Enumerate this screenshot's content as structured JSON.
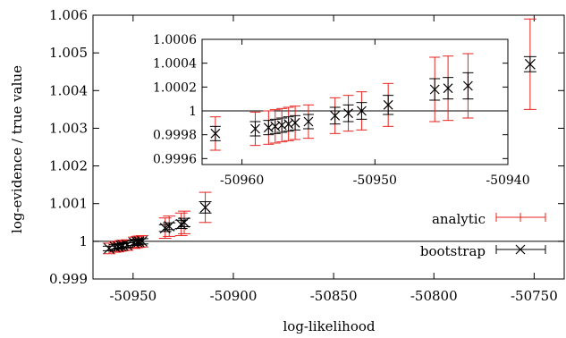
{
  "chart_data": [
    {
      "type": "scatter",
      "title": "",
      "xlabel": "log-likelihood",
      "ylabel": "log-evidence / true value",
      "xlim": [
        -50970,
        -50735
      ],
      "ylim": [
        0.999,
        1.006
      ],
      "xticks": [
        -50950,
        -50900,
        -50850,
        -50800,
        -50750
      ],
      "xtick_labels": [
        "-50950",
        "-50900",
        "-50850",
        "-50800",
        "-50750"
      ],
      "yticks": [
        0.999,
        1,
        1.001,
        1.002,
        1.003,
        1.004,
        1.005,
        1.006
      ],
      "ytick_labels": [
        "0.999",
        "1",
        "1.001",
        "1.002",
        "1.003",
        "1.004",
        "1.005",
        "1.006"
      ],
      "reference_line_y": 1,
      "grid": false,
      "legend_position": "bottom-right",
      "x": [
        -50962,
        -50959,
        -50957.5,
        -50956,
        -50955,
        -50953,
        -50949.5,
        -50948,
        -50947,
        -50945.5,
        -50934,
        -50932,
        -50926,
        -50924.5,
        -50914,
        -50752
      ],
      "y": [
        0.99981,
        0.99985,
        0.99986,
        0.99988,
        0.99989,
        0.9999,
        0.99996,
        0.99998,
        0.99999,
        1.0,
        1.00035,
        1.0004,
        1.00045,
        1.0005,
        1.0009,
        1.0047
      ],
      "series": [
        {
          "name": "analytic",
          "err": [
            0.00014,
            0.00014,
            0.00014,
            0.00014,
            0.00014,
            0.00014,
            0.00015,
            0.00015,
            0.00015,
            0.00015,
            0.00027,
            0.00027,
            0.0003,
            0.0003,
            0.0004,
            0.0012
          ],
          "color": "#e8231f"
        },
        {
          "name": "bootstrap",
          "err": [
            6e-05,
            6e-05,
            6e-05,
            6e-05,
            6e-05,
            6e-05,
            7e-05,
            7e-05,
            7e-05,
            7e-05,
            9e-05,
            9e-05,
            0.00011,
            0.00011,
            0.00015,
            0.0002
          ],
          "color": "#000000"
        }
      ]
    },
    {
      "type": "scatter",
      "title": "",
      "xlabel": "",
      "ylabel": "",
      "xlim": [
        -50963,
        -50940
      ],
      "ylim": [
        0.99955,
        1.0006
      ],
      "xticks": [
        -50960,
        -50950,
        -50940
      ],
      "xtick_labels": [
        "-50960",
        "-50950",
        "-50940"
      ],
      "yticks": [
        0.9996,
        0.9998,
        1,
        1.0002,
        1.0004,
        1.0006
      ],
      "ytick_labels": [
        "0.9996",
        "0.9998",
        "1",
        "1.0002",
        "1.0004",
        "1.0006"
      ],
      "reference_line_y": 1,
      "x": [
        -50962,
        -50959,
        -50958,
        -50957.5,
        -50957,
        -50956.5,
        -50956,
        -50955,
        -50953,
        -50952,
        -50951,
        -50949,
        -50945.5,
        -50944.5,
        -50943
      ],
      "y": [
        0.99981,
        0.99985,
        0.99986,
        0.99987,
        0.99988,
        0.99989,
        0.9999,
        0.99991,
        0.99996,
        0.99998,
        1.0,
        1.00005,
        1.00018,
        1.00019,
        1.00021
      ],
      "series": [
        {
          "name": "analytic",
          "err": [
            0.00014,
            0.00014,
            0.00014,
            0.00014,
            0.00014,
            0.00014,
            0.00014,
            0.00014,
            0.00015,
            0.00015,
            0.00016,
            0.00018,
            0.00027,
            0.00027,
            0.00027
          ],
          "color": "#e8231f"
        },
        {
          "name": "bootstrap",
          "err": [
            6e-05,
            6e-05,
            6e-05,
            6e-05,
            6e-05,
            6e-05,
            6e-05,
            6e-05,
            7e-05,
            7e-05,
            7e-05,
            8e-05,
            9e-05,
            9e-05,
            0.00011
          ],
          "color": "#000000"
        }
      ]
    }
  ]
}
